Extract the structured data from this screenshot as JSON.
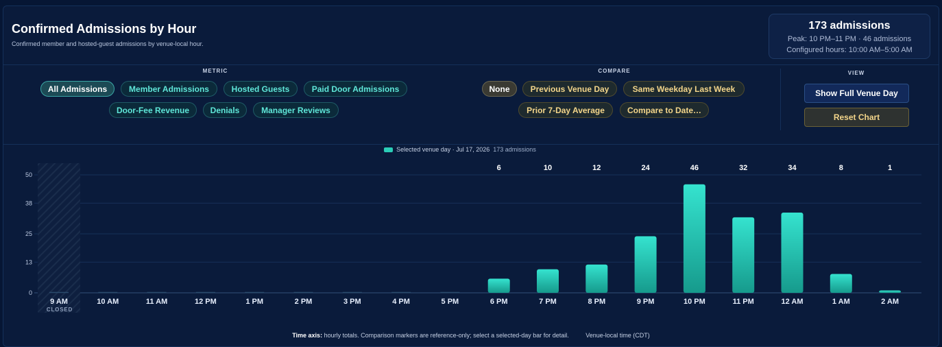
{
  "header": {
    "title": "Confirmed Admissions by Hour",
    "subtitle": "Confirmed member and hosted-guest admissions by venue-local hour."
  },
  "summary": {
    "total": "173 admissions",
    "peak": "Peak: 10 PM–11 PM · 46 admissions",
    "hours": "Configured hours: 10:00 AM–5:00 AM"
  },
  "metric": {
    "label": "METRIC",
    "options": [
      {
        "label": "All Admissions",
        "active": true
      },
      {
        "label": "Member Admissions"
      },
      {
        "label": "Hosted Guests"
      },
      {
        "label": "Paid Door Admissions"
      },
      {
        "label": "Door-Fee Revenue"
      },
      {
        "label": "Denials"
      },
      {
        "label": "Manager Reviews"
      }
    ]
  },
  "compare": {
    "label": "COMPARE",
    "options": [
      {
        "label": "None",
        "active": true
      },
      {
        "label": "Previous Venue Day"
      },
      {
        "label": "Same Weekday Last Week"
      },
      {
        "label": "Prior 7-Day Average"
      },
      {
        "label": "Compare to Date…"
      }
    ]
  },
  "view": {
    "label": "VIEW",
    "full_day": "Show Full Venue Day",
    "reset": "Reset Chart"
  },
  "legend": {
    "label": "Selected venue day · Jul 17, 2026",
    "count": "173 admissions"
  },
  "footer": {
    "bold": "Time axis:",
    "text": "hourly totals. Comparison markers are reference-only; select a selected-day bar for detail.",
    "timezone": "Venue-local time (CDT)"
  },
  "colors": {
    "bar_top": "#35e3cf",
    "bar_bottom": "#169a8c",
    "closed_hatch": "#1a2d4c"
  },
  "chart_data": {
    "type": "bar",
    "categories": [
      "9 AM",
      "10 AM",
      "11 AM",
      "12 PM",
      "1 PM",
      "2 PM",
      "3 PM",
      "4 PM",
      "5 PM",
      "6 PM",
      "7 PM",
      "8 PM",
      "9 PM",
      "10 PM",
      "11 PM",
      "12 AM",
      "1 AM",
      "2 AM"
    ],
    "values": [
      0,
      0,
      0,
      0,
      0,
      0,
      0,
      0,
      0,
      6,
      10,
      12,
      24,
      46,
      32,
      34,
      8,
      1
    ],
    "value_labels": [
      "",
      "",
      "",
      "",
      "",
      "",
      "",
      "",
      "",
      "6",
      "10",
      "12",
      "24",
      "46",
      "32",
      "34",
      "8",
      "1"
    ],
    "closed": [
      "9 AM"
    ],
    "closed_label": "CLOSED",
    "yticks": [
      0,
      13,
      25,
      38,
      50
    ],
    "ylim": [
      0,
      50
    ],
    "grid": true,
    "legend_position": "top-center"
  }
}
